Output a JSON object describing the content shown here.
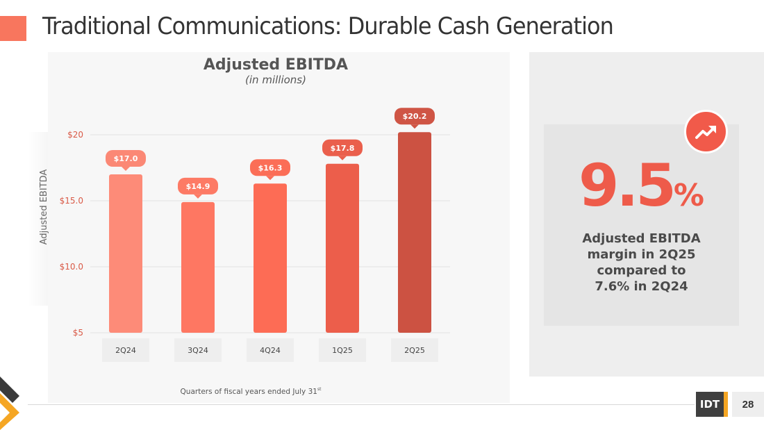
{
  "header": {
    "title": "Traditional Communications:  Durable Cash Generation"
  },
  "chart_data": {
    "type": "bar",
    "title": "Adjusted EBITDA",
    "subtitle": "(in millions)",
    "ylabel": "Adjusted EBITDA",
    "xlabel": "Quarters of fiscal years ended July 31",
    "xlabel_superscript": "st",
    "categories": [
      "2Q24",
      "3Q24",
      "4Q24",
      "1Q25",
      "2Q25"
    ],
    "values": [
      17.0,
      14.9,
      16.3,
      17.8,
      20.2
    ],
    "data_labels": [
      "$17.0",
      "$14.9",
      "$16.3",
      "$17.8",
      "$20.2"
    ],
    "yticks": [
      {
        "value": 5,
        "label": "$5"
      },
      {
        "value": 10,
        "label": "$10.0"
      },
      {
        "value": 15,
        "label": "$15.0"
      },
      {
        "value": 20,
        "label": "$20"
      }
    ],
    "ylim": [
      5,
      22
    ],
    "grid": true,
    "bar_colors": [
      "#fd8b78",
      "#fe7762",
      "#fd6c55",
      "#ec5e4b",
      "#cc5242"
    ],
    "label_colors": [
      "#fb8875",
      "#fd7a65",
      "#fb6e57",
      "#ea5f4c",
      "#cf5545"
    ]
  },
  "kpi": {
    "value": "9.5",
    "unit": "%",
    "desc_lines": [
      "Adjusted EBITDA",
      "margin in 2Q25",
      "compared to",
      "7.6% in 2Q24"
    ],
    "icon": "trending-up-icon",
    "accent": "#ee5b4a"
  },
  "footer": {
    "logo": "IDT",
    "page": "28"
  }
}
